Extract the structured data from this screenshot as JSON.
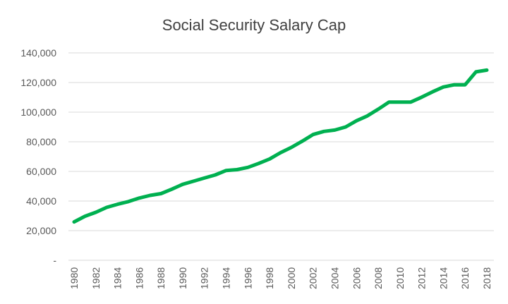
{
  "chart_data": {
    "type": "line",
    "title": "Social Security Salary Cap",
    "xlabel": "",
    "ylabel": "",
    "ylim": [
      0,
      140000
    ],
    "yticks": [
      0,
      20000,
      40000,
      60000,
      80000,
      100000,
      120000,
      140000
    ],
    "ytick_labels": [
      "-",
      "20,000",
      "40,000",
      "60,000",
      "80,000",
      "100,000",
      "120,000",
      "140,000"
    ],
    "xtick_labels": [
      "1980",
      "1982",
      "1984",
      "1986",
      "1988",
      "1990",
      "1992",
      "1994",
      "1996",
      "1998",
      "2000",
      "2002",
      "2004",
      "2006",
      "2008",
      "2010",
      "2012",
      "2014",
      "2016",
      "2018"
    ],
    "grid": true,
    "legend": "none",
    "line_color": "#00b050",
    "x": [
      1980,
      1981,
      1982,
      1983,
      1984,
      1985,
      1986,
      1987,
      1988,
      1989,
      1990,
      1991,
      1992,
      1993,
      1994,
      1995,
      1996,
      1997,
      1998,
      1999,
      2000,
      2001,
      2002,
      2003,
      2004,
      2005,
      2006,
      2007,
      2008,
      2009,
      2010,
      2011,
      2012,
      2013,
      2014,
      2015,
      2016,
      2017,
      2018
    ],
    "values": [
      25900,
      29700,
      32400,
      35700,
      37800,
      39600,
      42000,
      43800,
      45000,
      48000,
      51300,
      53400,
      55500,
      57600,
      60600,
      61200,
      62700,
      65400,
      68400,
      72600,
      76200,
      80400,
      84900,
      87000,
      87900,
      90000,
      94200,
      97500,
      102000,
      106800,
      106800,
      106800,
      110100,
      113700,
      117000,
      118500,
      118500,
      127200,
      128400
    ]
  }
}
